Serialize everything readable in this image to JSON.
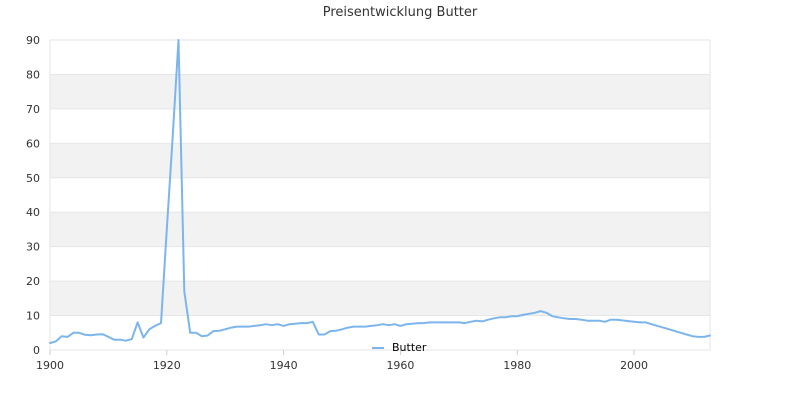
{
  "chart_data": {
    "type": "line",
    "title": "Preisentwicklung Butter",
    "xlabel": "",
    "ylabel": "",
    "xlim": [
      1900,
      2013
    ],
    "ylim": [
      0,
      90
    ],
    "x_ticks": [
      1900,
      1920,
      1940,
      1960,
      1980,
      2000
    ],
    "y_ticks": [
      0,
      10,
      20,
      30,
      40,
      50,
      60,
      70,
      80,
      90
    ],
    "grid": "horizontal alternating bands",
    "legend_position": "bottom-center",
    "colors": {
      "series": "#7cb5ec",
      "band": "#f2f2f2",
      "grid": "#e6e6e6",
      "text": "#333333"
    },
    "series": [
      {
        "name": "Butter",
        "x": [
          1900,
          1901,
          1902,
          1903,
          1904,
          1905,
          1906,
          1907,
          1908,
          1909,
          1910,
          1911,
          1912,
          1913,
          1914,
          1915,
          1916,
          1917,
          1918,
          1919,
          1920,
          1921,
          1922,
          1923,
          1924,
          1925,
          1926,
          1927,
          1928,
          1929,
          1930,
          1931,
          1932,
          1933,
          1934,
          1935,
          1936,
          1937,
          1938,
          1939,
          1940,
          1941,
          1942,
          1943,
          1944,
          1945,
          1946,
          1947,
          1948,
          1949,
          1950,
          1951,
          1952,
          1953,
          1954,
          1955,
          1956,
          1957,
          1958,
          1959,
          1960,
          1961,
          1962,
          1963,
          1964,
          1965,
          1966,
          1967,
          1968,
          1969,
          1970,
          1971,
          1972,
          1973,
          1974,
          1975,
          1976,
          1977,
          1978,
          1979,
          1980,
          1981,
          1982,
          1983,
          1984,
          1985,
          1986,
          1987,
          1988,
          1989,
          1990,
          1991,
          1992,
          1993,
          1994,
          1995,
          1996,
          1997,
          1998,
          1999,
          2000,
          2001,
          2002,
          2003,
          2004,
          2005,
          2006,
          2007,
          2008,
          2009,
          2010,
          2011,
          2012,
          2013
        ],
        "values": [
          2.0,
          2.5,
          4.0,
          3.8,
          5.0,
          5.0,
          4.4,
          4.3,
          4.5,
          4.6,
          3.8,
          3.0,
          3.0,
          2.7,
          3.2,
          8.0,
          3.6,
          6.0,
          7.0,
          7.8,
          35,
          62,
          90,
          17,
          5.0,
          5.0,
          4.0,
          4.2,
          5.5,
          5.6,
          6.0,
          6.5,
          6.8,
          6.8,
          6.8,
          7.0,
          7.2,
          7.5,
          7.2,
          7.5,
          7.0,
          7.5,
          7.6,
          7.8,
          7.8,
          8.2,
          4.5,
          4.5,
          5.5,
          5.6,
          6.0,
          6.5,
          6.8,
          6.8,
          6.8,
          7.0,
          7.2,
          7.5,
          7.2,
          7.5,
          7.0,
          7.5,
          7.6,
          7.8,
          7.8,
          8.0,
          8.0,
          8.0,
          8.0,
          8.0,
          8.0,
          7.8,
          8.2,
          8.5,
          8.3,
          8.8,
          9.2,
          9.5,
          9.5,
          9.8,
          9.8,
          10.2,
          10.5,
          10.8,
          11.3,
          10.8,
          9.8,
          9.5,
          9.2,
          9.0,
          9.0,
          8.8,
          8.5,
          8.5,
          8.5,
          8.2,
          8.8,
          8.8,
          8.6,
          8.4,
          8.2,
          8.0,
          8.0,
          7.5,
          7.0,
          6.5,
          6.0,
          5.5,
          5.0,
          4.5,
          4.0,
          3.8,
          3.8,
          4.2
        ]
      }
    ]
  }
}
